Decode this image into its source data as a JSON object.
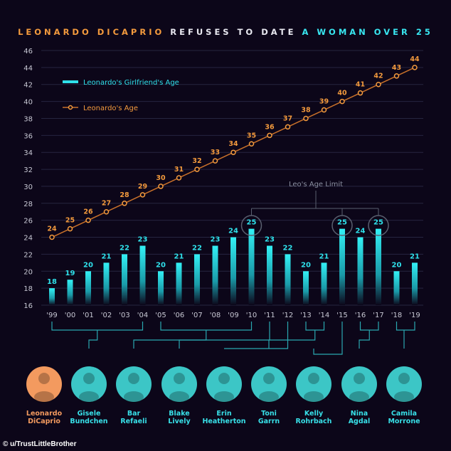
{
  "title": {
    "part1": "LEONARDO DICAPRIO",
    "part2": " REFUSES TO DATE ",
    "part3": "A WOMAN OVER 25"
  },
  "chart_data": {
    "type": "bar+line",
    "categories": [
      "'99",
      "'00",
      "'01",
      "'02",
      "'03",
      "'04",
      "'05",
      "'06",
      "'07",
      "'08",
      "'09",
      "'10",
      "'11",
      "'12",
      "'13",
      "'14",
      "'15",
      "'16",
      "'17",
      "'18",
      "'19"
    ],
    "series": [
      {
        "name": "Leonardo's Girlfriend's Age",
        "type": "bar",
        "color": "#2fe0ea",
        "values": [
          18,
          19,
          20,
          21,
          22,
          23,
          20,
          21,
          22,
          23,
          24,
          25,
          23,
          22,
          20,
          21,
          25,
          24,
          25,
          20,
          21
        ]
      },
      {
        "name": "Leonardo's Age",
        "type": "line",
        "color": "#f39a3d",
        "values": [
          24,
          25,
          26,
          27,
          28,
          29,
          30,
          31,
          32,
          33,
          34,
          35,
          36,
          37,
          38,
          39,
          40,
          41,
          42,
          43,
          44
        ]
      }
    ],
    "yticks": [
      16,
      18,
      20,
      22,
      24,
      26,
      28,
      30,
      32,
      34,
      36,
      38,
      40,
      42,
      44,
      46
    ],
    "ylim": [
      16,
      46
    ],
    "grid": true,
    "legend_placement": "top-left",
    "annotation": {
      "text": "Leo's Age Limit",
      "highlighted": [
        "'10",
        "'15",
        "'17"
      ]
    }
  },
  "people": [
    {
      "first": "Leonardo",
      "last": "DiCaprio",
      "color": "#f39a5f",
      "years": []
    },
    {
      "first": "Gisele",
      "last": "Bundchen",
      "color": "#3cc6c6",
      "years": [
        "'99",
        "'04"
      ]
    },
    {
      "first": "Bar",
      "last": "Refaeli",
      "color": "#3cc6c6",
      "years": [
        "'05",
        "'10"
      ]
    },
    {
      "first": "Blake",
      "last": "Lively",
      "color": "#3cc6c6",
      "years": [
        "'11"
      ]
    },
    {
      "first": "Erin",
      "last": "Heatherton",
      "color": "#3cc6c6",
      "years": [
        "'12"
      ]
    },
    {
      "first": "Toni",
      "last": "Garrn",
      "color": "#3cc6c6",
      "years": [
        "'13",
        "'14"
      ]
    },
    {
      "first": "Kelly",
      "last": "Rohrbach",
      "color": "#3cc6c6",
      "years": [
        "'15"
      ]
    },
    {
      "first": "Nina",
      "last": "Agdal",
      "color": "#3cc6c6",
      "years": [
        "'16",
        "'17"
      ]
    },
    {
      "first": "Camila",
      "last": "Morrone",
      "color": "#3cc6c6",
      "years": [
        "'18",
        "'19"
      ]
    }
  ],
  "credit": "© u/TrustLittleBrother"
}
